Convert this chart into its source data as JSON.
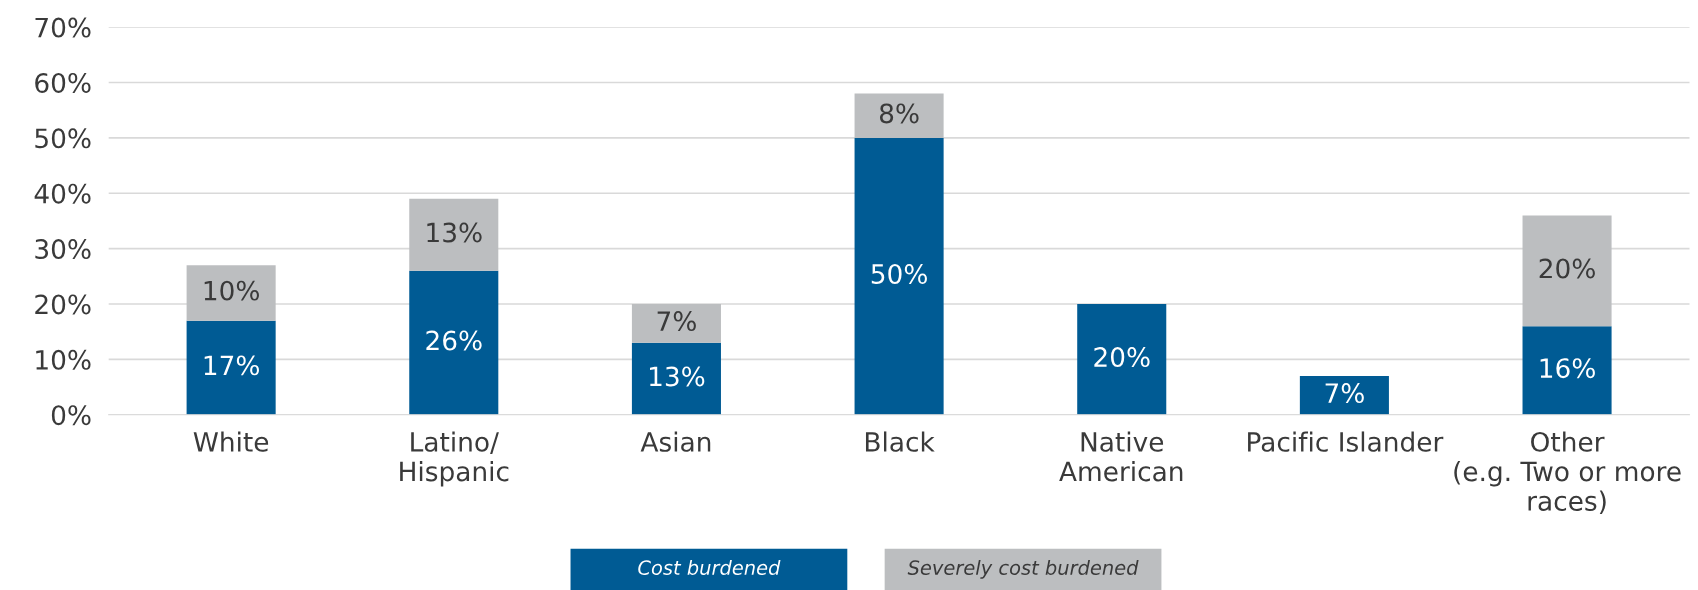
{
  "chart_data": {
    "type": "bar",
    "stacked": true,
    "categories": [
      "White",
      "Latino/\nHispanic",
      "Asian",
      "Black",
      "Native\nAmerican",
      "Pacific Islander",
      "Other\n(e.g. Two or more\nraces)"
    ],
    "series": [
      {
        "name": "Cost burdened",
        "color": "#005b94",
        "values": [
          17,
          26,
          13,
          50,
          20,
          7,
          16
        ],
        "value_labels": [
          "17%",
          "26%",
          "13%",
          "50%",
          "20%",
          "7%",
          "16%"
        ]
      },
      {
        "name": "Severely cost burdened",
        "color": "#bcbec0",
        "values": [
          10,
          13,
          7,
          8,
          null,
          null,
          20
        ],
        "value_labels": [
          "10%",
          "13%",
          "7%",
          "8%",
          null,
          null,
          "20%"
        ]
      }
    ],
    "ylim": [
      0,
      70
    ],
    "yticks": [
      {
        "value": 0,
        "label": "0%"
      },
      {
        "value": 10,
        "label": "10%"
      },
      {
        "value": 20,
        "label": "20%"
      },
      {
        "value": 30,
        "label": "30%"
      },
      {
        "value": 40,
        "label": "40%"
      },
      {
        "value": 50,
        "label": "50%"
      },
      {
        "value": 60,
        "label": "60%"
      },
      {
        "value": 70,
        "label": "70%"
      }
    ],
    "grid": "y",
    "legend": "bottom"
  }
}
